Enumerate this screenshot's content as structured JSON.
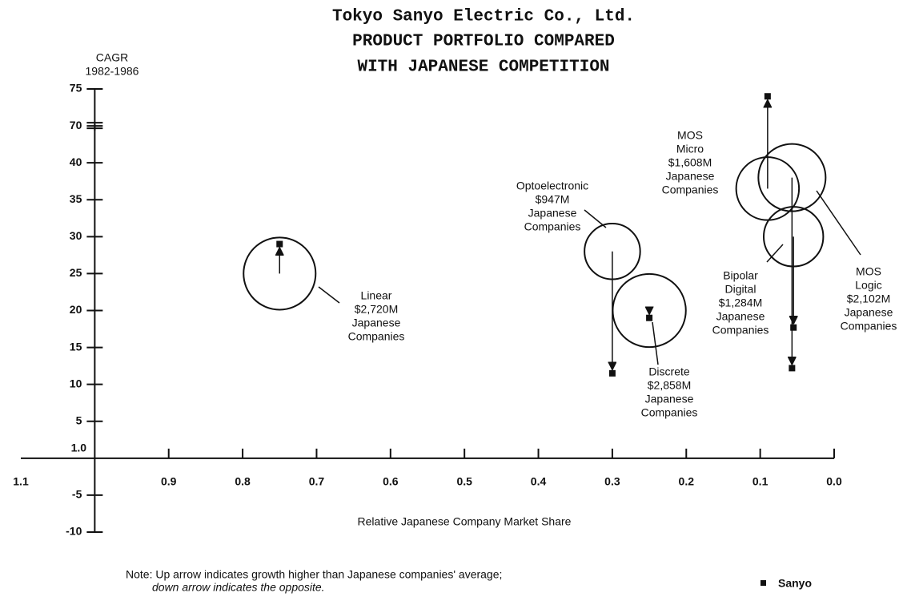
{
  "chart_data": {
    "type": "bubble",
    "title": [
      "Tokyo Sanyo Electric Co., Ltd.",
      "PRODUCT PORTFOLIO COMPARED",
      "WITH JAPANESE COMPETITION"
    ],
    "y_label": [
      "CAGR",
      "1982-1986"
    ],
    "x_label": "Relative Japanese Company Market Share",
    "note": [
      "Note: Up arrow indicates growth higher than Japanese companies' average;",
      "down arrow indicates the opposite."
    ],
    "legend_name": "Sanyo",
    "xlim": [
      1.1,
      0.0
    ],
    "xticks": [
      {
        "value": 1.1,
        "label": "1.1"
      },
      {
        "value": 1.0,
        "label": "1.0"
      },
      {
        "value": 0.9,
        "label": "0.9"
      },
      {
        "value": 0.8,
        "label": "0.8"
      },
      {
        "value": 0.7,
        "label": "0.7"
      },
      {
        "value": 0.6,
        "label": "0.6"
      },
      {
        "value": 0.5,
        "label": "0.5"
      },
      {
        "value": 0.4,
        "label": "0.4"
      },
      {
        "value": 0.3,
        "label": "0.3"
      },
      {
        "value": 0.2,
        "label": "0.2"
      },
      {
        "value": 0.1,
        "label": "0.1"
      },
      {
        "value": 0.0,
        "label": "0.0"
      }
    ],
    "ylim": [
      -10,
      75
    ],
    "y_break": [
      45,
      70
    ],
    "yticks": [
      -10,
      -5,
      5,
      10,
      15,
      20,
      25,
      30,
      35,
      40,
      70,
      75
    ],
    "series": [
      {
        "name": [
          "Linear"
        ],
        "size": 2720,
        "size_label": "$2,720M",
        "group": [
          "Japanese",
          "Companies"
        ],
        "x": 0.75,
        "y": 25,
        "sanyo_y": 29
      },
      {
        "name": [
          "Optoelectronic"
        ],
        "size": 947,
        "size_label": "$947M",
        "group": [
          "Japanese",
          "Companies"
        ],
        "x": 0.3,
        "y": 28,
        "sanyo_y": 11.5
      },
      {
        "name": [
          "Discrete"
        ],
        "size": 2858,
        "size_label": "$2,858M",
        "group": [
          "Japanese",
          "Companies"
        ],
        "x": 0.25,
        "y": 20,
        "sanyo_y": 19
      },
      {
        "name": [
          "MOS",
          "Micro"
        ],
        "size": 1608,
        "size_label": "$1,608M",
        "group": [
          "Japanese",
          "Companies"
        ],
        "x": 0.09,
        "y": 36.5,
        "sanyo_y": 74
      },
      {
        "name": [
          "Bipolar",
          "Digital"
        ],
        "size": 1284,
        "size_label": "$1,284M",
        "group": [
          "Japanese",
          "Companies"
        ],
        "x": 0.055,
        "y": 30,
        "sanyo_y": 17.7
      },
      {
        "name": [
          "MOS",
          "Logic"
        ],
        "size": 2102,
        "size_label": "$2,102M",
        "group": [
          "Japanese",
          "Companies"
        ],
        "x": 0.057,
        "y": 38,
        "sanyo_y": 12.2
      }
    ]
  }
}
